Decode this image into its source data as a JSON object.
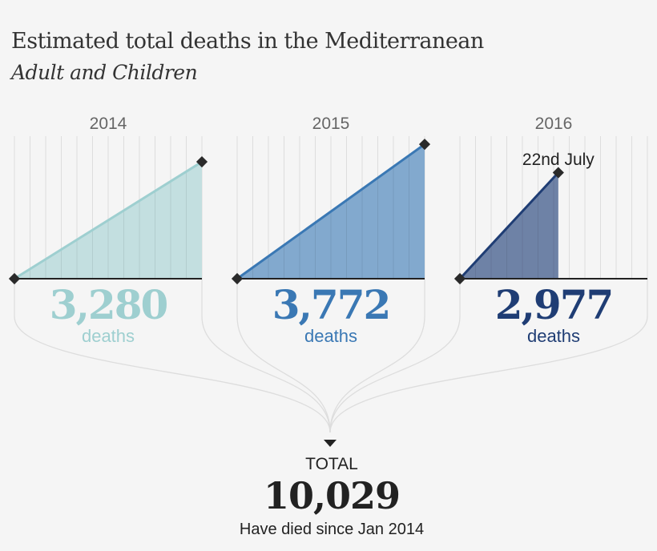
{
  "title": "Estimated total deaths in the Mediterranean",
  "subtitle": "Adult and Children",
  "chart_data": {
    "type": "area",
    "ylim": [
      0,
      4000
    ],
    "x_unit": "months",
    "xlim": [
      0,
      12
    ],
    "panels": [
      {
        "year": "2014",
        "value": 3280,
        "value_label": "3,280",
        "unit_label": "deaths",
        "end_month": 12,
        "fill": "#c3dfe0",
        "line": "#9ecfd0",
        "text_color": "#9ecfd0"
      },
      {
        "year": "2015",
        "value": 3772,
        "value_label": "3,772",
        "unit_label": "deaths",
        "end_month": 12,
        "fill": "#82a9ce",
        "line": "#3a78b4",
        "text_color": "#3a78b4"
      },
      {
        "year": "2016",
        "value": 2977,
        "value_label": "2,977",
        "unit_label": "deaths",
        "end_month": 6.3,
        "annotation": "22nd July",
        "fill": "#6e82a6",
        "line": "#1f3d74",
        "text_color": "#1f3d74"
      }
    ]
  },
  "total": {
    "label": "TOTAL",
    "value": "10,029",
    "caption": "Have died since Jan 2014"
  }
}
